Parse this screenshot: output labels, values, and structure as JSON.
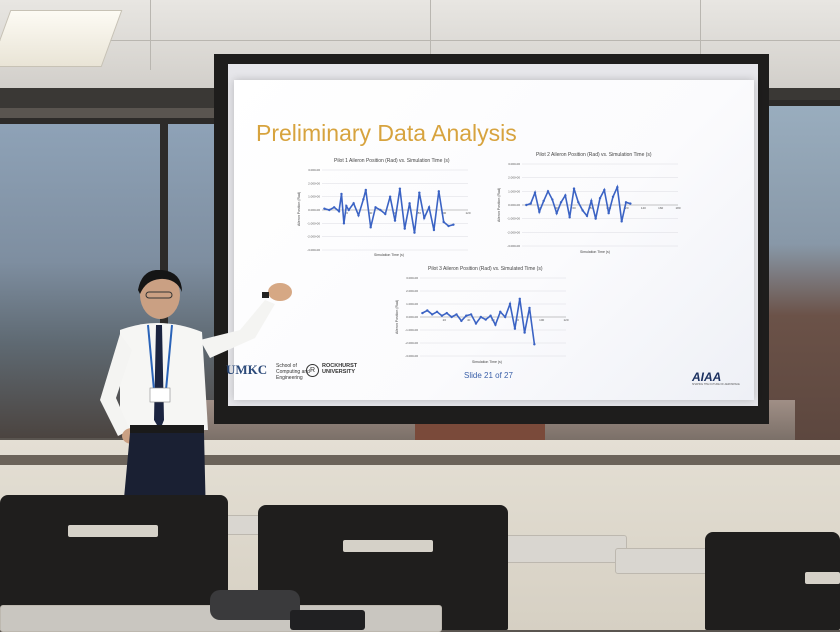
{
  "slide": {
    "title": "Preliminary Data Analysis",
    "footer": {
      "umkc": "UMKC",
      "umkc_sub": "School of Computing and Engineering",
      "rockhurst": "ROCKHURST UNIVERSITY",
      "rockhurst_icon": "R",
      "slide_number": "Slide 21 of 27",
      "aiaa": "AIAA",
      "aiaa_tagline": "SHAPING THE FUTURE OF AEROSPACE"
    }
  },
  "chart_data": [
    {
      "type": "scatter",
      "title": "Pilot 1 Aileron Position (Rad) vs. Simulation Time (s)",
      "xlabel": "Simulation Time (s)",
      "ylabel": "Aileron Position (Rad)",
      "ylim": [
        -3,
        3
      ],
      "y_ticks": [
        "3.000-00",
        "2.000-00",
        "1.000-00",
        "0.000-00",
        "-1.000-00",
        "-2.000-00",
        "-3.000-00"
      ],
      "x_ticks": [
        "20",
        "40",
        "60",
        "80",
        "100",
        "120"
      ],
      "series": [
        {
          "color": "#3b63c4",
          "x": [
            2,
            6,
            10,
            14,
            16,
            18,
            20,
            22,
            26,
            30,
            34,
            36,
            40,
            44,
            48,
            52,
            56,
            60,
            64,
            68,
            72,
            76,
            80,
            84,
            88,
            92,
            96,
            100,
            104,
            108
          ],
          "y": [
            0.1,
            0.0,
            0.2,
            -0.1,
            1.2,
            -1.0,
            0.3,
            0.0,
            0.5,
            -0.4,
            0.8,
            1.5,
            -1.3,
            0.2,
            0.0,
            -0.3,
            1.0,
            -0.8,
            1.6,
            -1.4,
            0.5,
            -1.7,
            1.3,
            -0.6,
            0.2,
            -1.5,
            1.4,
            -0.9,
            -1.2,
            -1.1
          ]
        }
      ]
    },
    {
      "type": "scatter",
      "title": "Pilot 2 Aileron Position (Rad) vs. Simulation Time (s)",
      "xlabel": "Simulation Time (s)",
      "ylabel": "Aileron Position (Rad)",
      "ylim": [
        -3,
        3
      ],
      "y_ticks": [
        "3.000-00",
        "2.000-00",
        "1.000-00",
        "0.000-00",
        "-1.000-00",
        "-2.000-00",
        "-3.000-00"
      ],
      "x_ticks": [
        "20",
        "40",
        "60",
        "80",
        "100",
        "120",
        "140",
        "160",
        "180"
      ],
      "series": [
        {
          "color": "#3b63c4",
          "x": [
            5,
            10,
            15,
            20,
            25,
            30,
            35,
            40,
            45,
            50,
            55,
            60,
            65,
            70,
            75,
            80,
            85,
            90,
            95,
            100,
            105,
            110,
            115,
            120,
            125
          ],
          "y": [
            0.0,
            0.1,
            0.9,
            -0.5,
            0.3,
            1.0,
            0.4,
            -0.6,
            0.2,
            0.7,
            -0.9,
            1.2,
            0.2,
            -0.4,
            -0.8,
            0.3,
            -1.0,
            0.5,
            1.1,
            -0.6,
            0.6,
            1.3,
            -1.2,
            0.2,
            0.1
          ]
        }
      ]
    },
    {
      "type": "scatter",
      "title": "Pilot 3 Aileron Position (Rad) vs. Simulated Time (s)",
      "xlabel": "Simulation Time (s)",
      "ylabel": "Aileron Position (Rad)",
      "ylim": [
        -3,
        3
      ],
      "y_ticks": [
        "3.000-00",
        "2.000-00",
        "1.000-00",
        "0.000-00",
        "-1.000-00",
        "-2.000-00",
        "-3.000-00"
      ],
      "x_ticks": [
        "20",
        "40",
        "60",
        "80",
        "100",
        "120"
      ],
      "series": [
        {
          "color": "#3b63c4",
          "x": [
            2,
            6,
            10,
            14,
            18,
            22,
            26,
            30,
            34,
            38,
            42,
            46,
            50,
            54,
            58,
            62,
            66,
            70,
            74,
            78,
            82,
            86,
            90,
            94
          ],
          "y": [
            0.3,
            0.5,
            0.2,
            0.4,
            0.1,
            0.3,
            0.0,
            0.2,
            -0.3,
            0.1,
            0.2,
            -0.5,
            0.0,
            -0.2,
            0.1,
            -0.6,
            0.4,
            0.0,
            1.0,
            -0.9,
            1.4,
            -1.2,
            0.7,
            -2.1
          ]
        }
      ]
    }
  ]
}
